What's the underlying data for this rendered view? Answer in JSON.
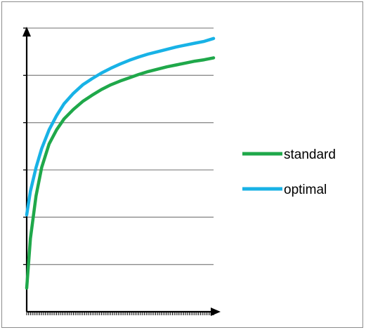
{
  "chart_data": {
    "type": "line",
    "title": "",
    "xlabel": "",
    "ylabel": "",
    "xlim": [
      0,
      100
    ],
    "ylim": [
      0,
      6
    ],
    "gridlines": "horizontal",
    "x_tick_count": 100,
    "legend_position": "right",
    "series": [
      {
        "name": "standard",
        "color": "#1fa84a",
        "x": [
          0,
          2,
          5,
          8,
          12,
          16,
          20,
          25,
          30,
          35,
          40,
          45,
          50,
          55,
          60,
          65,
          70,
          75,
          80,
          85,
          90,
          95,
          100
        ],
        "values": [
          0.5,
          1.55,
          2.45,
          3.05,
          3.55,
          3.85,
          4.08,
          4.28,
          4.45,
          4.58,
          4.7,
          4.8,
          4.88,
          4.95,
          5.02,
          5.08,
          5.13,
          5.18,
          5.22,
          5.26,
          5.3,
          5.33,
          5.37
        ]
      },
      {
        "name": "optimal",
        "color": "#18b2e6",
        "x": [
          0,
          2,
          5,
          8,
          12,
          16,
          20,
          25,
          30,
          35,
          40,
          45,
          50,
          55,
          60,
          65,
          70,
          75,
          80,
          85,
          90,
          95,
          100
        ],
        "values": [
          2.05,
          2.55,
          3.05,
          3.45,
          3.85,
          4.15,
          4.4,
          4.62,
          4.8,
          4.93,
          5.05,
          5.15,
          5.24,
          5.32,
          5.39,
          5.45,
          5.5,
          5.55,
          5.6,
          5.64,
          5.68,
          5.72,
          5.78
        ]
      }
    ]
  }
}
